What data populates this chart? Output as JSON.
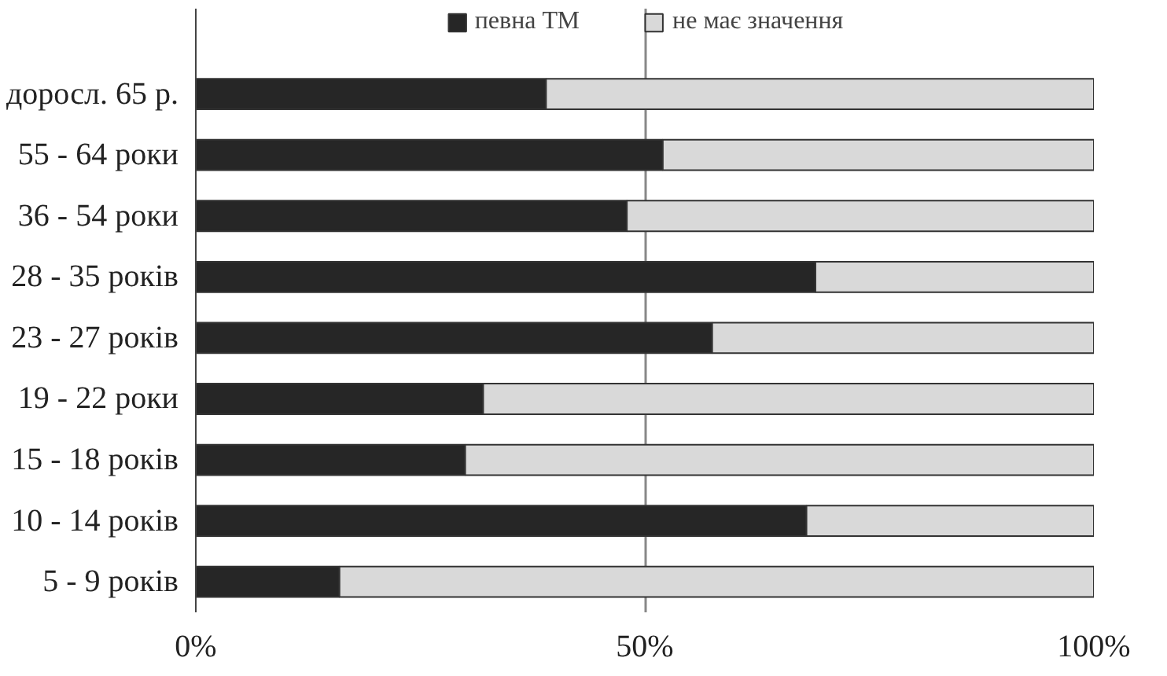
{
  "chart_data": {
    "type": "bar",
    "orientation": "horizontal",
    "stacked": true,
    "categories": [
      "доросл. 65 р.",
      "55 - 64 роки",
      "36 - 54 роки",
      "28 - 35 років",
      "23 - 27 років",
      "19 - 22 роки",
      "15 - 18 років",
      "10 - 14 років",
      "5 - 9 років"
    ],
    "series": [
      {
        "name": "певна ТМ",
        "color": "#262626",
        "values": [
          39,
          52,
          48,
          69,
          57.5,
          32,
          30,
          68,
          16
        ]
      },
      {
        "name": "не має значення",
        "color": "#d9d9d9",
        "values": [
          61,
          48,
          52,
          31,
          42.5,
          68,
          70,
          32,
          84
        ]
      }
    ],
    "xlim": [
      0,
      100
    ],
    "xticks": [
      {
        "value": 0,
        "label": "0%"
      },
      {
        "value": 50,
        "label": "50%"
      },
      {
        "value": 100,
        "label": "100%"
      }
    ],
    "grid": "x",
    "legend": "top"
  }
}
